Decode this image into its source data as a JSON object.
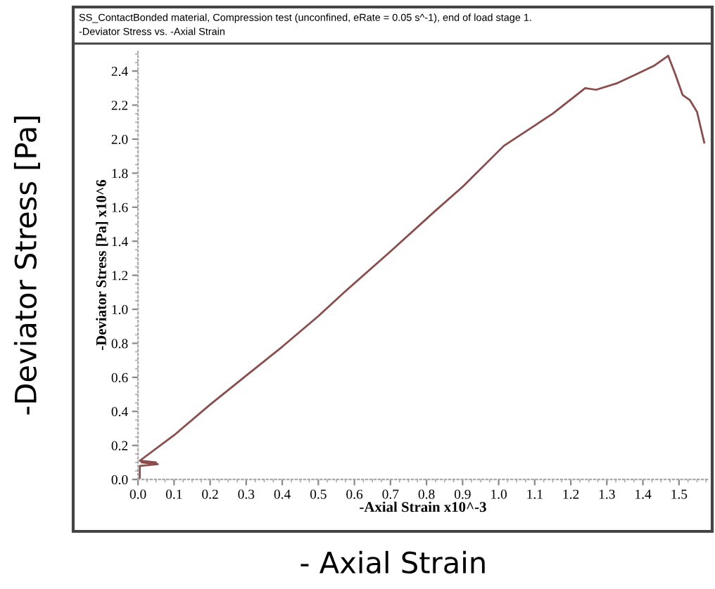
{
  "chart_data": {
    "type": "line",
    "title": "SS_ContactBonded material, Compression test (unconfined, eRate = 0.05 s^-1), end of load stage 1.",
    "subtitle": "-Deviator Stress vs. -Axial Strain",
    "xlabel": "-Axial Strain x10^-3",
    "ylabel": "-Deviator Stress [Pa] x10^6",
    "annotations": [
      "-Deviator Stress [Pa]",
      "- Axial Strain"
    ],
    "series": [
      {
        "color": "#8b4c4c",
        "x": [
          0.005,
          0.005,
          0.055,
          0.01,
          0.05,
          0.005,
          0.1,
          0.2,
          0.3,
          0.4,
          0.5,
          0.572,
          0.7,
          0.825,
          0.9,
          1.014,
          1.1,
          1.15,
          1.24,
          1.27,
          1.33,
          1.38,
          1.43,
          1.47,
          1.49,
          1.51,
          1.53,
          1.55,
          1.57
        ],
        "values": [
          0.01,
          0.08,
          0.09,
          0.1,
          0.1,
          0.11,
          0.26,
          0.44,
          0.61,
          0.78,
          0.96,
          1.1,
          1.34,
          1.58,
          1.72,
          1.96,
          2.08,
          2.15,
          2.3,
          2.29,
          2.33,
          2.38,
          2.43,
          2.49,
          2.38,
          2.26,
          2.23,
          2.16,
          1.98
        ]
      }
    ],
    "xlim": [
      0,
      1.58
    ],
    "ylim": [
      0,
      2.52
    ],
    "xticks": [
      {
        "value": 0,
        "label": "0.0"
      },
      {
        "value": 0.1,
        "label": "0.1"
      },
      {
        "value": 0.2,
        "label": "0.2"
      },
      {
        "value": 0.3,
        "label": "0.3"
      },
      {
        "value": 0.4,
        "label": "0.4"
      },
      {
        "value": 0.5,
        "label": "0.5"
      },
      {
        "value": 0.6,
        "label": "0.6"
      },
      {
        "value": 0.7,
        "label": "0.7"
      },
      {
        "value": 0.8,
        "label": "0.8"
      },
      {
        "value": 0.9,
        "label": "0.9"
      },
      {
        "value": 1.0,
        "label": "1.0"
      },
      {
        "value": 1.1,
        "label": "1.1"
      },
      {
        "value": 1.2,
        "label": "1.2"
      },
      {
        "value": 1.3,
        "label": "1.3"
      },
      {
        "value": 1.4,
        "label": "1.4"
      },
      {
        "value": 1.5,
        "label": "1.5"
      }
    ],
    "yticks": [
      {
        "value": 0,
        "label": "0.0"
      },
      {
        "value": 0.2,
        "label": "0.2"
      },
      {
        "value": 0.4,
        "label": "0.4"
      },
      {
        "value": 0.6,
        "label": "0.6"
      },
      {
        "value": 0.8,
        "label": "0.8"
      },
      {
        "value": 1.0,
        "label": "1.0"
      },
      {
        "value": 1.2,
        "label": "1.2"
      },
      {
        "value": 1.4,
        "label": "1.4"
      },
      {
        "value": 1.6,
        "label": "1.6"
      },
      {
        "value": 1.8,
        "label": "1.8"
      },
      {
        "value": 2.0,
        "label": "2.0"
      },
      {
        "value": 2.2,
        "label": "2.2"
      },
      {
        "value": 2.4,
        "label": "2.4"
      }
    ],
    "grid": false,
    "legend": false,
    "marker": "none",
    "line_style": "solid"
  }
}
